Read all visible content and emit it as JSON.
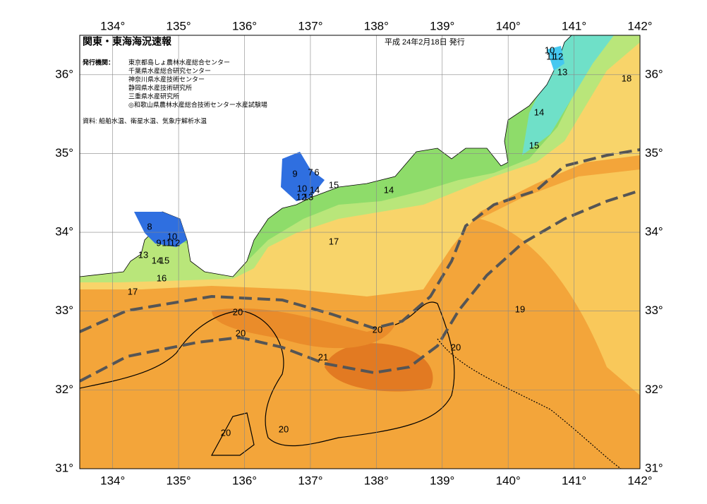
{
  "header": {
    "title": "関東・東海海況速報",
    "issued": "平成 24年2月18日 発行"
  },
  "publishers": {
    "label": "発行機関：",
    "names": [
      "東京都島しょ農林水産総合センター",
      "千葉県水産総合研究センター",
      "神奈川県水産技術センター",
      "静岡県水産技術研究所",
      "三重県水産研究所",
      "◎和歌山県農林水産総合技術センター水産試験場"
    ]
  },
  "source": "資料: 船舶水温、衛星水温、気象庁解析水温",
  "map": {
    "lon_range": [
      133.5,
      142
    ],
    "lat_range": [
      31,
      36.5
    ],
    "longitudes": [
      {
        "value": 134,
        "label": "134°"
      },
      {
        "value": 135,
        "label": "135°"
      },
      {
        "value": 136,
        "label": "136°"
      },
      {
        "value": 137,
        "label": "137°"
      },
      {
        "value": 138,
        "label": "138°"
      },
      {
        "value": 139,
        "label": "139°"
      },
      {
        "value": 140,
        "label": "140°"
      },
      {
        "value": 141,
        "label": "141°"
      },
      {
        "value": 142,
        "label": "142°"
      }
    ],
    "latitudes": [
      {
        "value": 36,
        "label": "36°"
      },
      {
        "value": 35,
        "label": "35°"
      },
      {
        "value": 34,
        "label": "34°"
      },
      {
        "value": 33,
        "label": "33°"
      },
      {
        "value": 32,
        "label": "32°"
      },
      {
        "value": 31,
        "label": "31°"
      }
    ],
    "contour_labels": [
      10,
      11,
      12,
      13,
      18,
      14,
      15,
      14,
      15,
      9,
      7,
      6,
      10,
      12,
      13,
      14,
      8,
      10,
      9,
      11,
      12,
      13,
      14,
      15,
      16,
      17,
      17,
      19,
      20,
      20,
      20,
      20,
      21,
      20,
      20
    ]
  }
}
